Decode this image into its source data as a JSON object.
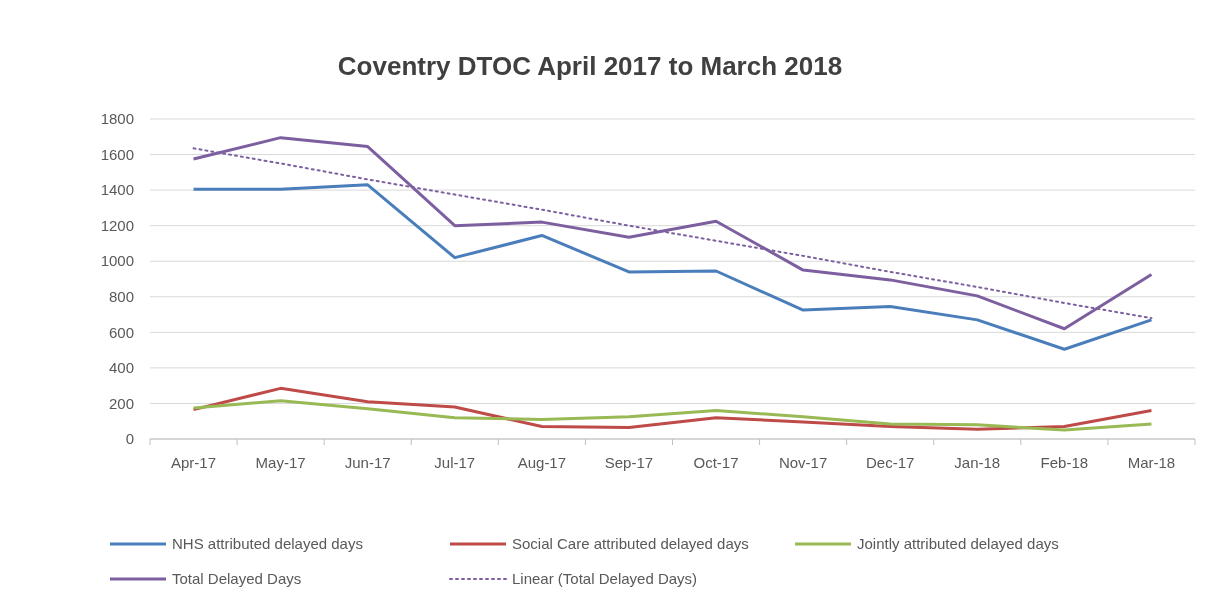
{
  "chart_data": {
    "type": "line",
    "title": "Coventry DTOC April 2017 to March 2018",
    "categories": [
      "Apr-17",
      "May-17",
      "Jun-17",
      "Jul-17",
      "Aug-17",
      "Sep-17",
      "Oct-17",
      "Nov-17",
      "Dec-17",
      "Jan-18",
      "Feb-18",
      "Mar-18"
    ],
    "series": [
      {
        "name": "NHS attributed delayed days",
        "color": "#4a7ebb",
        "values": [
          1405,
          1405,
          1430,
          1020,
          1145,
          940,
          945,
          725,
          745,
          670,
          505,
          670
        ]
      },
      {
        "name": "Social Care attributed delayed days",
        "color": "#be4b48",
        "values": [
          165,
          285,
          210,
          180,
          70,
          65,
          120,
          95,
          70,
          55,
          70,
          160
        ]
      },
      {
        "name": "Jointly attributed delayed days",
        "color": "#98b954",
        "values": [
          175,
          215,
          170,
          120,
          110,
          125,
          160,
          125,
          85,
          80,
          50,
          85
        ]
      },
      {
        "name": "Total Delayed Days",
        "color": "#7d5fa0",
        "values": [
          1575,
          1695,
          1645,
          1200,
          1220,
          1135,
          1225,
          950,
          895,
          805,
          620,
          925
        ]
      },
      {
        "name": "Linear (Total Delayed Days)",
        "color": "#7d5fa0",
        "line_style": "dotted",
        "values": [
          1635,
          1550,
          1460,
          1375,
          1290,
          1200,
          1115,
          1030,
          940,
          855,
          765,
          680
        ]
      }
    ],
    "ylim": [
      0,
      1800
    ],
    "yticks": [
      0,
      200,
      400,
      600,
      800,
      1000,
      1200,
      1400,
      1600,
      1800
    ],
    "grid": "y",
    "legend": "bottom",
    "marker": "none",
    "line_style": "solid"
  }
}
